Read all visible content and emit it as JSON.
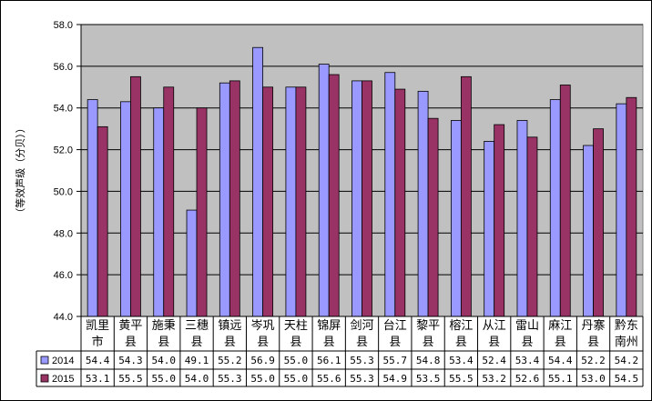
{
  "chart_data": {
    "type": "bar",
    "title": "",
    "xlabel": "",
    "ylabel": "（等效声级（分贝））",
    "ylim": [
      44.0,
      58.0
    ],
    "y_ticks": [
      "44.0",
      "46.0",
      "48.0",
      "50.0",
      "52.0",
      "54.0",
      "56.0",
      "58.0"
    ],
    "grid": true,
    "legend": "data-table-left",
    "categories": [
      "凯里市",
      "黄平县",
      "施秉县",
      "三穗县",
      "镇远县",
      "岑巩县",
      "天柱县",
      "锦屏县",
      "剑河县",
      "台江县",
      "黎平县",
      "榕江县",
      "从江县",
      "雷山县",
      "麻江县",
      "丹寨县",
      "黔东南州"
    ],
    "category_lines": [
      [
        "凯里",
        "市"
      ],
      [
        "黄平",
        "县"
      ],
      [
        "施秉",
        "县"
      ],
      [
        "三穗",
        "县"
      ],
      [
        "镇远",
        "县"
      ],
      [
        "岑巩",
        "县"
      ],
      [
        "天柱",
        "县"
      ],
      [
        "锦屏",
        "县"
      ],
      [
        "剑河",
        "县"
      ],
      [
        "台江",
        "县"
      ],
      [
        "黎平",
        "县"
      ],
      [
        "榕江",
        "县"
      ],
      [
        "从江",
        "县"
      ],
      [
        "雷山",
        "县"
      ],
      [
        "麻江",
        "县"
      ],
      [
        "丹寨",
        "县"
      ],
      [
        "黔东",
        "南州"
      ]
    ],
    "series": [
      {
        "name": "2014",
        "color": "#9999ff",
        "values": [
          54.4,
          54.3,
          54.0,
          49.1,
          55.2,
          56.9,
          55.0,
          56.1,
          55.3,
          55.7,
          54.8,
          53.4,
          52.4,
          53.4,
          54.4,
          52.2,
          54.2
        ],
        "labels": [
          "54.4",
          "54.3",
          "54.0",
          "49.1",
          "55.2",
          "56.9",
          "55.0",
          "56.1",
          "55.3",
          "55.7",
          "54.8",
          "53.4",
          "52.4",
          "53.4",
          "54.4",
          "52.2",
          "54.2"
        ]
      },
      {
        "name": "2015",
        "color": "#993366",
        "values": [
          53.1,
          55.5,
          55.0,
          54.0,
          55.3,
          55.0,
          55.0,
          55.6,
          55.3,
          54.9,
          53.5,
          55.5,
          53.2,
          52.6,
          55.1,
          53.0,
          54.5
        ],
        "labels": [
          "53.1",
          "55.5",
          "55.0",
          "54.0",
          "55.3",
          "55.0",
          "55.0",
          "55.6",
          "55.3",
          "54.9",
          "53.5",
          "55.5",
          "53.2",
          "52.6",
          "55.1",
          "53.0",
          "54.5"
        ]
      }
    ],
    "plot_background": "#c0c0c0"
  }
}
